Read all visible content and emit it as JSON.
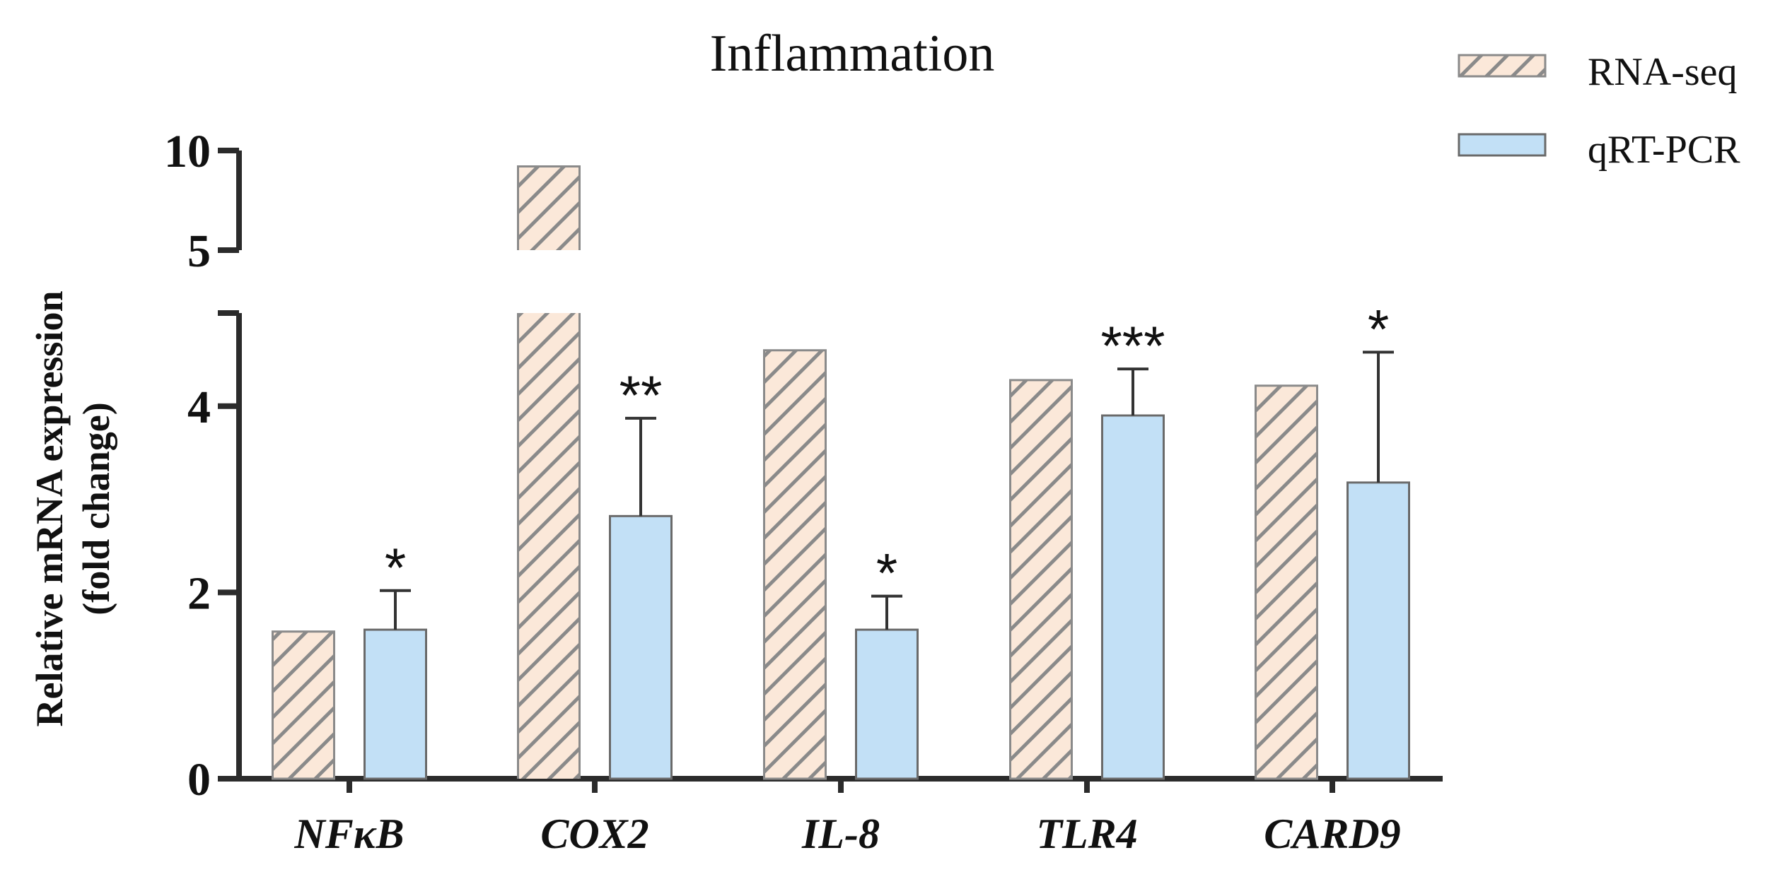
{
  "chart_data": {
    "type": "bar",
    "title": "Inflammation",
    "ylabel_line1": "Relative mRNA expression",
    "ylabel_line2": "(fold change)",
    "xlabel": "",
    "categories": [
      "NFκB",
      "COX2",
      "IL-8",
      "TLR4",
      "CARD9"
    ],
    "y_axis": {
      "broken": true,
      "lower_range": [
        0,
        5
      ],
      "upper_range": [
        5,
        10
      ],
      "lower_ticks": [
        0,
        2,
        4
      ],
      "upper_ticks": [
        5,
        10
      ]
    },
    "series": [
      {
        "name": "RNA-seq",
        "pattern": "hatched",
        "fill_color": "#fbe8d9",
        "stroke_color": "#8a8a8a",
        "values": [
          1.58,
          9.2,
          4.6,
          4.28,
          4.22
        ],
        "errors": [
          null,
          null,
          null,
          null,
          null
        ],
        "significance": [
          "",
          "",
          "",
          "",
          ""
        ]
      },
      {
        "name": "qRT-PCR",
        "pattern": "solid",
        "fill_color": "#c2e0f6",
        "stroke_color": "#6a6a6a",
        "values": [
          1.6,
          2.82,
          1.6,
          3.9,
          3.18
        ],
        "errors": [
          0.42,
          1.05,
          0.36,
          0.5,
          1.4
        ],
        "significance": [
          "*",
          "**",
          "*",
          "***",
          "*"
        ]
      }
    ],
    "legend_position": "top-right"
  }
}
